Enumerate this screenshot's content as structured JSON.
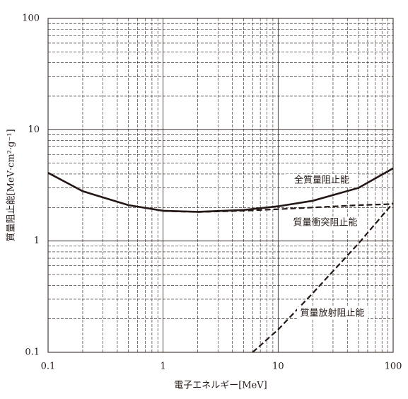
{
  "chart_data": {
    "type": "line",
    "x_label": "電子エネルギー[MeV]",
    "y_label": "質量阻止能[MeV·cm²·g⁻¹]",
    "log_x": true,
    "log_y": true,
    "grid": true,
    "minor_grid": true,
    "xlim": [
      0.1,
      100
    ],
    "ylim": [
      0.1,
      100
    ],
    "xticks": [
      0.1,
      1,
      10,
      100
    ],
    "yticks": [
      0.1,
      1,
      10,
      100
    ],
    "series": [
      {
        "name": "全質量阻止能",
        "color": "#231815",
        "style": "solid",
        "x": [
          0.1,
          0.2,
          0.5,
          1,
          2,
          5,
          10,
          20,
          50,
          100
        ],
        "values": [
          4.1,
          2.8,
          2.1,
          1.87,
          1.83,
          1.9,
          2.05,
          2.3,
          3.0,
          4.5
        ]
      },
      {
        "name": "質量衝突阻止能",
        "color": "#231815",
        "style": "dashed",
        "x": [
          1,
          2,
          5,
          10,
          20,
          50,
          100
        ],
        "values": [
          1.86,
          1.82,
          1.87,
          1.93,
          2.0,
          2.1,
          2.15
        ]
      },
      {
        "name": "質量放射阻止能",
        "color": "#231815",
        "style": "dashed",
        "x": [
          6,
          10,
          20,
          50,
          100
        ],
        "values": [
          0.1,
          0.16,
          0.34,
          0.95,
          2.2
        ]
      }
    ]
  }
}
